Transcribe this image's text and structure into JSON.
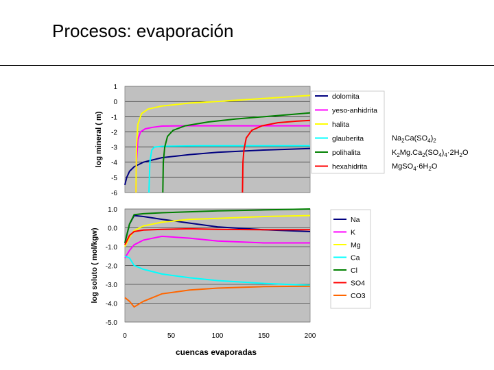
{
  "slide": {
    "title": "Procesos: evaporación"
  },
  "formulas": [
    {
      "parts": [
        [
          "Na",
          ""
        ],
        [
          "2",
          "sub"
        ],
        [
          "Ca(SO",
          ""
        ],
        [
          "4",
          "sub"
        ],
        [
          ")",
          ""
        ],
        [
          "2",
          "sub"
        ]
      ]
    },
    {
      "parts": [
        [
          "K",
          ""
        ],
        [
          "2",
          "sub"
        ],
        [
          "Mg.Ca",
          ""
        ],
        [
          "2",
          "sub"
        ],
        [
          "(SO",
          ""
        ],
        [
          "4",
          "sub"
        ],
        [
          ")",
          ""
        ],
        [
          "4",
          "sub"
        ],
        [
          "·2H",
          ""
        ],
        [
          "2",
          "sub"
        ],
        [
          "O",
          ""
        ]
      ]
    },
    {
      "parts": [
        [
          "MgSO",
          ""
        ],
        [
          "4",
          "sub"
        ],
        [
          "·6H",
          ""
        ],
        [
          "2",
          "sub"
        ],
        [
          "O",
          ""
        ]
      ]
    }
  ],
  "colors": {
    "plot_bg": "#c0c0c0",
    "dolomita": "#000080",
    "yeso": "#ff00ff",
    "halita": "#ffff00",
    "glauberita": "#00ffff",
    "polihalita": "#008000",
    "hexahidrita": "#ff0000",
    "Na": "#000080",
    "K": "#ff00ff",
    "Mg": "#ffff00",
    "Ca": "#00ffff",
    "Cl": "#008000",
    "SO4": "#ff0000",
    "CO3": "#ff6600"
  },
  "chart_data": [
    {
      "type": "line",
      "ylabel": "log mineral ( m)",
      "xlabel": "",
      "xlim": [
        0,
        200
      ],
      "ylim": [
        -6,
        1
      ],
      "yticks": [
        "1",
        "0",
        "-1",
        "-2",
        "-3",
        "-4",
        "-5",
        "-6"
      ],
      "grid": true,
      "legend": "right",
      "series": [
        {
          "name": "dolomita",
          "color_key": "dolomita",
          "points": [
            [
              0,
              -5.5
            ],
            [
              2,
              -5.0
            ],
            [
              5,
              -4.6
            ],
            [
              10,
              -4.3
            ],
            [
              20,
              -4.0
            ],
            [
              40,
              -3.7
            ],
            [
              70,
              -3.5
            ],
            [
              100,
              -3.35
            ],
            [
              150,
              -3.2
            ],
            [
              200,
              -3.1
            ]
          ]
        },
        {
          "name": "yeso-anhidrita",
          "color_key": "yeso",
          "points": [
            [
              12,
              -6
            ],
            [
              12.5,
              -4
            ],
            [
              14,
              -2.5
            ],
            [
              17,
              -2.0
            ],
            [
              22,
              -1.8
            ],
            [
              30,
              -1.7
            ],
            [
              40,
              -1.62
            ],
            [
              60,
              -1.6
            ],
            [
              100,
              -1.6
            ],
            [
              150,
              -1.6
            ],
            [
              200,
              -1.6
            ]
          ]
        },
        {
          "name": "halita",
          "color_key": "halita",
          "points": [
            [
              12,
              -6
            ],
            [
              12.5,
              -3
            ],
            [
              14,
              -1.5
            ],
            [
              18,
              -0.8
            ],
            [
              25,
              -0.5
            ],
            [
              40,
              -0.3
            ],
            [
              70,
              -0.1
            ],
            [
              100,
              0.0
            ],
            [
              150,
              0.2
            ],
            [
              200,
              0.4
            ]
          ]
        },
        {
          "name": "glauberita",
          "color_key": "glauberita",
          "points": [
            [
              26,
              -6
            ],
            [
              27,
              -4
            ],
            [
              29,
              -3.2
            ],
            [
              32,
              -3.0
            ],
            [
              40,
              -2.95
            ],
            [
              80,
              -2.92
            ],
            [
              130,
              -2.92
            ],
            [
              200,
              -2.92
            ]
          ]
        },
        {
          "name": "polihalita",
          "color_key": "polihalita",
          "points": [
            [
              41,
              -6
            ],
            [
              41.5,
              -4
            ],
            [
              43,
              -3.0
            ],
            [
              46,
              -2.3
            ],
            [
              52,
              -1.9
            ],
            [
              65,
              -1.6
            ],
            [
              90,
              -1.35
            ],
            [
              120,
              -1.15
            ],
            [
              160,
              -0.95
            ],
            [
              200,
              -0.75
            ]
          ]
        },
        {
          "name": "hexahidrita",
          "color_key": "hexahidrita",
          "points": [
            [
              127,
              -6
            ],
            [
              127.5,
              -4
            ],
            [
              128.5,
              -3.2
            ],
            [
              131,
              -2.4
            ],
            [
              137,
              -1.9
            ],
            [
              148,
              -1.6
            ],
            [
              165,
              -1.4
            ],
            [
              185,
              -1.3
            ],
            [
              200,
              -1.25
            ]
          ]
        }
      ]
    },
    {
      "type": "line",
      "ylabel": "log soluto ( mol/kgw)",
      "xlabel": "cuencas evaporadas",
      "xlim": [
        0,
        200
      ],
      "ylim": [
        -5,
        1
      ],
      "xticks": [
        "0",
        "50",
        "100",
        "150",
        "200"
      ],
      "yticks": [
        "1.0",
        "0.0",
        "-1.0",
        "-2.0",
        "-3.0",
        "-4.0",
        "-5.0"
      ],
      "grid": true,
      "legend": "right",
      "series": [
        {
          "name": "Na",
          "color_key": "Na",
          "points": [
            [
              0,
              -0.8
            ],
            [
              5,
              0.2
            ],
            [
              10,
              0.65
            ],
            [
              20,
              0.6
            ],
            [
              40,
              0.45
            ],
            [
              70,
              0.25
            ],
            [
              100,
              0.05
            ],
            [
              150,
              -0.1
            ],
            [
              200,
              -0.2
            ]
          ]
        },
        {
          "name": "K",
          "color_key": "K",
          "points": [
            [
              0,
              -1.6
            ],
            [
              5,
              -1.2
            ],
            [
              10,
              -0.9
            ],
            [
              20,
              -0.65
            ],
            [
              40,
              -0.45
            ],
            [
              70,
              -0.55
            ],
            [
              100,
              -0.7
            ],
            [
              150,
              -0.8
            ],
            [
              200,
              -0.8
            ]
          ]
        },
        {
          "name": "Mg",
          "color_key": "Mg",
          "points": [
            [
              0,
              -1.0
            ],
            [
              5,
              -0.5
            ],
            [
              10,
              -0.15
            ],
            [
              20,
              0.1
            ],
            [
              40,
              0.3
            ],
            [
              70,
              0.45
            ],
            [
              100,
              0.5
            ],
            [
              150,
              0.6
            ],
            [
              200,
              0.65
            ]
          ]
        },
        {
          "name": "Ca",
          "color_key": "Ca",
          "points": [
            [
              0,
              -1.5
            ],
            [
              5,
              -1.6
            ],
            [
              10,
              -2.0
            ],
            [
              20,
              -2.2
            ],
            [
              40,
              -2.45
            ],
            [
              70,
              -2.65
            ],
            [
              100,
              -2.8
            ],
            [
              150,
              -2.95
            ],
            [
              200,
              -3.05
            ]
          ]
        },
        {
          "name": "Cl",
          "color_key": "Cl",
          "points": [
            [
              0,
              -0.8
            ],
            [
              5,
              0.2
            ],
            [
              10,
              0.7
            ],
            [
              20,
              0.75
            ],
            [
              40,
              0.8
            ],
            [
              70,
              0.85
            ],
            [
              100,
              0.9
            ],
            [
              150,
              0.95
            ],
            [
              200,
              1.0
            ]
          ]
        },
        {
          "name": "SO4",
          "color_key": "SO4",
          "points": [
            [
              0,
              -0.9
            ],
            [
              5,
              -0.4
            ],
            [
              10,
              -0.2
            ],
            [
              20,
              -0.12
            ],
            [
              40,
              -0.08
            ],
            [
              70,
              -0.05
            ],
            [
              100,
              -0.08
            ],
            [
              150,
              -0.1
            ],
            [
              200,
              -0.1
            ]
          ]
        },
        {
          "name": "CO3",
          "color_key": "CO3",
          "points": [
            [
              0,
              -3.7
            ],
            [
              5,
              -3.9
            ],
            [
              10,
              -4.2
            ],
            [
              20,
              -3.9
            ],
            [
              40,
              -3.5
            ],
            [
              70,
              -3.3
            ],
            [
              100,
              -3.2
            ],
            [
              150,
              -3.12
            ],
            [
              200,
              -3.1
            ]
          ]
        }
      ]
    }
  ]
}
